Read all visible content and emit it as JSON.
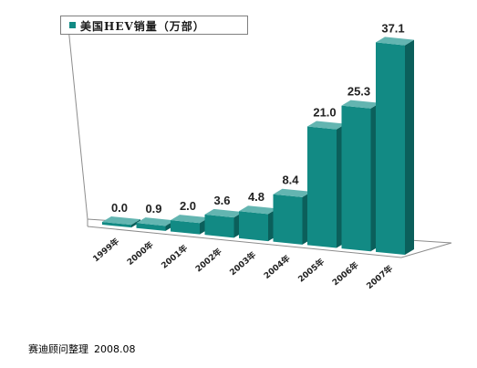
{
  "chart_data": {
    "type": "bar",
    "title": "",
    "legend": {
      "label": "美国HEV销量（万部）",
      "position": "top-left"
    },
    "categories": [
      "1999年",
      "2000年",
      "2001年",
      "2002年",
      "2003年",
      "2004年",
      "2005年",
      "2006年",
      "2007年"
    ],
    "series": [
      {
        "name": "美国HEV销量（万部）",
        "values": [
          0.0,
          0.9,
          2.0,
          3.6,
          4.8,
          8.4,
          21.0,
          25.3,
          37.1
        ]
      }
    ],
    "data_labels": [
      "0.0",
      "0.9",
      "2.0",
      "3.6",
      "4.8",
      "8.4",
      "21.0",
      "25.3",
      "37.1"
    ],
    "ylim": [
      0,
      40
    ],
    "grid": false,
    "three_d": true,
    "bar_color": "#128a84"
  },
  "source": {
    "text": "赛迪顾问整理",
    "date": "2008.08"
  }
}
